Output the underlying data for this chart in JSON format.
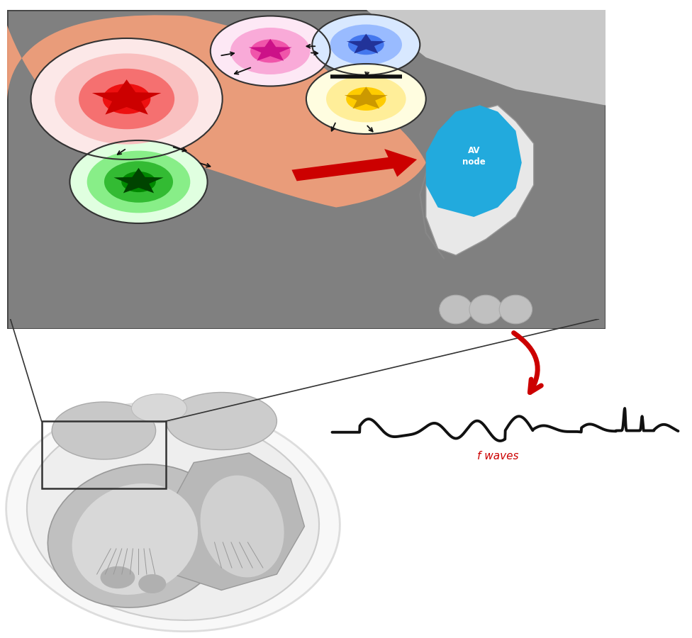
{
  "fig_width": 9.76,
  "fig_height": 9.0,
  "bg_color": "#ffffff",
  "panel_gray": "#808080",
  "panel_edge": "#444444",
  "top_right_light": "#c8c8c8",
  "right_wall_white": "#e8e8e8",
  "right_wall_gray": "#b0b0b0",
  "cusp_color": "#c0c0c0",
  "blob_color": "#f5a07a",
  "blob_alpha": 0.9,
  "red_rings": [
    "#fce8e8",
    "#f9c0c0",
    "#f57070",
    "#ee1010"
  ],
  "red_star": "#cc0000",
  "pink_rings": [
    "#fde8f5",
    "#f9aad8",
    "#f055aa"
  ],
  "pink_star": "#cc1188",
  "blue_rings": [
    "#d8e8ff",
    "#99bbff",
    "#4477ee"
  ],
  "blue_star": "#223399",
  "yellow_rings": [
    "#fffde0",
    "#ffee99",
    "#ffcc00"
  ],
  "yellow_star": "#cc9900",
  "green_rings": [
    "#e0ffe0",
    "#88ee88",
    "#33bb33",
    "#008800"
  ],
  "green_star": "#004400",
  "av_color": "#22aadd",
  "av_text": "AV\nnode",
  "av_text_color": "#ffffff",
  "red_arrow_color": "#cc0000",
  "black_color": "#111111",
  "block_bar_color": "#111111",
  "f_wave_color": "#111111",
  "f_wave_label": "f waves",
  "f_wave_label_color": "#cc0000",
  "heart_outer_color": "#f2f2f2",
  "heart_border_color": "#cccccc",
  "heart_inner_color": "#aaaaaa",
  "zoom_line_color": "#333333"
}
